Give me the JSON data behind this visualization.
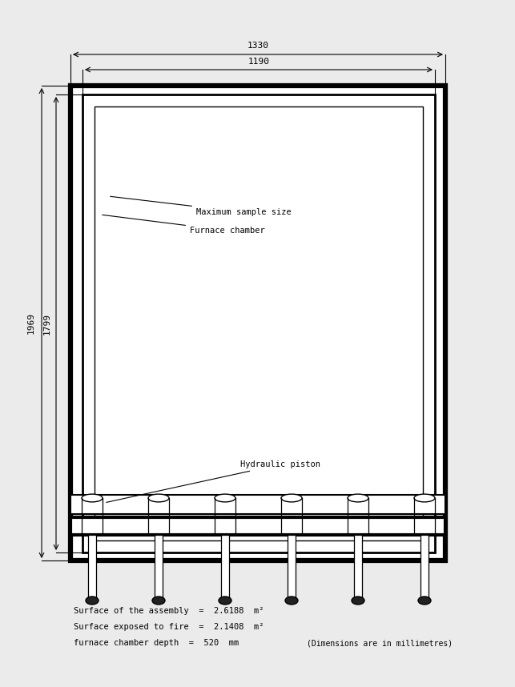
{
  "bg_color": "#ebebeb",
  "line_color": "#000000",
  "fig_width": 6.43,
  "fig_height": 8.58,
  "font_size": 7.5,
  "dim_font_size": 8,
  "annotation_text1": "Maximum sample size",
  "annotation_text2": "Furnace chamber",
  "annotation_text3": "Hydraulic piston",
  "bottom_text1": "Surface of the assembly  =  2.6188  m²",
  "bottom_text2": "Surface exposed to fire  =  2.1408  m²",
  "bottom_text3": "furnace chamber depth  =  520  mm",
  "bottom_text4": "(Dimensions are in millimetres)"
}
